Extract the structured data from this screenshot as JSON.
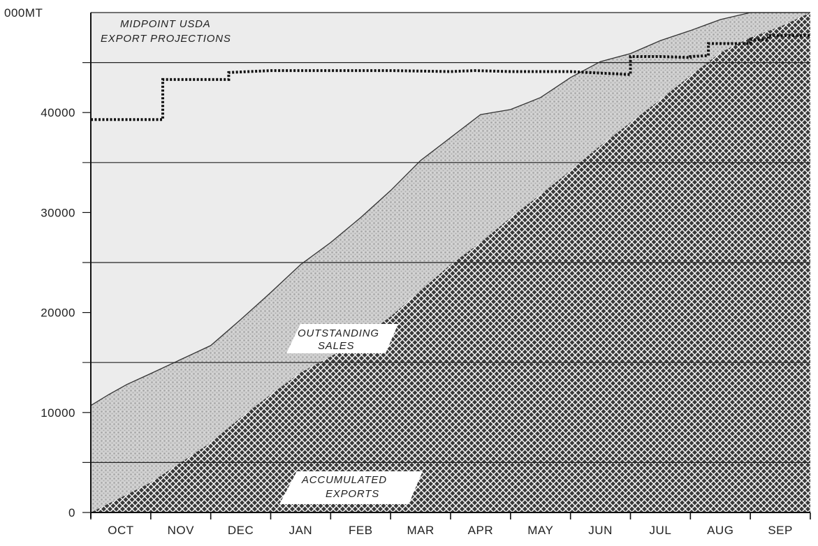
{
  "chart_data": {
    "type": "area",
    "ylabel": "000MT",
    "y_ticks": [
      "0",
      "10000",
      "20000",
      "30000",
      "40000"
    ],
    "y_tick_values": [
      0,
      10000,
      20000,
      30000,
      40000
    ],
    "ylim": [
      0,
      50000
    ],
    "months": [
      "OCT",
      "NOV",
      "DEC",
      "JAN",
      "FEB",
      "MAR",
      "APR",
      "MAY",
      "JUN",
      "JUL",
      "AUG",
      "SEP"
    ],
    "horizontal_reference_lines": [
      5000,
      15000,
      25000,
      35000,
      45000
    ],
    "annotations": {
      "projection_label": [
        "MIDPOINT USDA",
        "EXPORT PROJECTIONS"
      ],
      "outstanding_label": [
        "OUTSTANDING",
        "SALES"
      ],
      "accumulated_label": [
        "ACCUMULATED",
        "EXPORTS"
      ]
    },
    "series": [
      {
        "name": "Outstanding sales",
        "x": [
          0,
          0.3,
          0.6,
          1.0,
          1.5,
          2.0,
          2.5,
          3.0,
          3.5,
          4.0,
          4.5,
          5.0,
          5.5,
          6.0,
          6.5,
          7.0,
          7.5,
          8.0,
          8.5,
          9.0,
          9.5,
          10.0,
          10.5,
          11.0,
          11.5,
          12.0
        ],
        "values": [
          10700,
          11800,
          12800,
          13900,
          15300,
          16700,
          19300,
          22000,
          24800,
          27000,
          29500,
          32200,
          35200,
          37500,
          39800,
          40300,
          41500,
          43500,
          45100,
          45900,
          47200,
          48200,
          49300,
          50000,
          50000,
          50000
        ]
      },
      {
        "name": "Accumulated exports",
        "x": [
          0,
          0.5,
          1.0,
          1.5,
          2.0,
          2.5,
          3.0,
          3.5,
          4.0,
          4.5,
          5.0,
          5.5,
          6.0,
          6.5,
          7.0,
          7.5,
          8.0,
          8.5,
          9.0,
          9.5,
          10.0,
          10.5,
          11.0,
          11.5,
          12.0
        ],
        "values": [
          0,
          1500,
          3000,
          5000,
          7000,
          9500,
          11800,
          14000,
          15600,
          17400,
          19600,
          22200,
          24800,
          27000,
          29500,
          31800,
          34200,
          36700,
          39000,
          41300,
          43700,
          46000,
          47500,
          48600,
          50000
        ]
      },
      {
        "name": "Midpoint USDA export projections",
        "step": true,
        "x": [
          0,
          1.2,
          1.2,
          2.3,
          2.3,
          3.0,
          4.0,
          5.0,
          6.0,
          6.4,
          7.0,
          8.0,
          9.0,
          9.0,
          9.5,
          10.0,
          10.0,
          10.3,
          10.3,
          11.0,
          11.0,
          11.3,
          11.3,
          12.0
        ],
        "values": [
          39300,
          39300,
          43300,
          43300,
          44000,
          44200,
          44200,
          44200,
          44100,
          44200,
          44100,
          44100,
          43800,
          45600,
          45600,
          45500,
          45600,
          45700,
          46900,
          46900,
          47300,
          47300,
          47700,
          47700
        ]
      }
    ]
  }
}
